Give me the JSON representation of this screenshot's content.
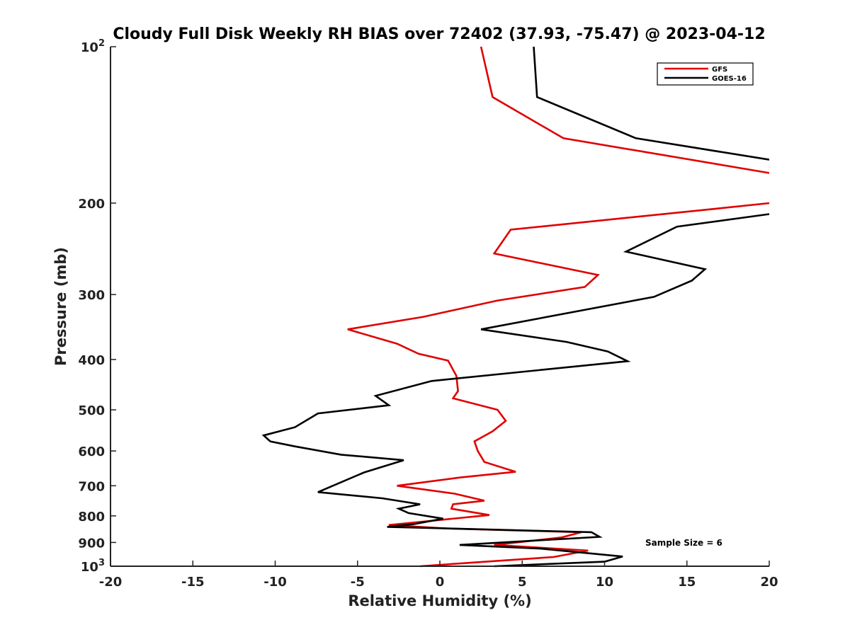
{
  "chart_data": {
    "type": "line",
    "title": "Cloudy Full Disk Weekly RH BIAS over 72402 (37.93, -75.47) @ 2023-04-12",
    "xlabel": "Relative Humidity (%)",
    "ylabel": "Pressure (mb)",
    "xlim": [
      -20,
      20
    ],
    "ylim": [
      100,
      1000
    ],
    "y_scale": "log",
    "y_reversed": true,
    "grid": false,
    "legend_position": "top-right",
    "x_ticks": [
      "-20",
      "-15",
      "-10",
      "-5",
      "0",
      "5",
      "10",
      "15",
      "20"
    ],
    "y_ticks": [
      {
        "value": 100,
        "base": "10",
        "exp": "2"
      },
      {
        "value": 200,
        "label": "200"
      },
      {
        "value": 300,
        "label": "300"
      },
      {
        "value": 400,
        "label": "400"
      },
      {
        "value": 500,
        "label": "500"
      },
      {
        "value": 600,
        "label": "600"
      },
      {
        "value": 700,
        "label": "700"
      },
      {
        "value": 800,
        "label": "800"
      },
      {
        "value": 900,
        "label": "900"
      },
      {
        "value": 1000,
        "base": "10",
        "exp": "3"
      }
    ],
    "series": [
      {
        "name": "GFS",
        "color": "#e00000",
        "points": [
          [
            2.5,
            100
          ],
          [
            3.2,
            125
          ],
          [
            7.5,
            150
          ],
          [
            20,
            175
          ],
          [
            null,
            null
          ],
          [
            20,
            200
          ],
          [
            16.8,
            205
          ],
          [
            4.3,
            225
          ],
          [
            3.3,
            250
          ],
          [
            9.6,
            275
          ],
          [
            8.8,
            290
          ],
          [
            3.5,
            308
          ],
          [
            -1.0,
            331
          ],
          [
            -5.6,
            350
          ],
          [
            -2.6,
            373
          ],
          [
            -1.3,
            390
          ],
          [
            0.5,
            402
          ],
          [
            1.0,
            430
          ],
          [
            1.1,
            460
          ],
          [
            0.8,
            475
          ],
          [
            3.5,
            500
          ],
          [
            4.0,
            525
          ],
          [
            3.2,
            550
          ],
          [
            2.1,
            575
          ],
          [
            2.3,
            600
          ],
          [
            2.7,
            630
          ],
          [
            4.6,
            658
          ],
          [
            1.2,
            675
          ],
          [
            -2.6,
            700
          ],
          [
            0.9,
            725
          ],
          [
            2.7,
            748
          ],
          [
            0.8,
            760
          ],
          [
            0.7,
            775
          ],
          [
            3.0,
            797
          ],
          [
            -3.1,
            833
          ],
          [
            0.4,
            846
          ],
          [
            8.6,
            860
          ],
          [
            7.4,
            880
          ],
          [
            3.3,
            910
          ],
          [
            9.0,
            933
          ],
          [
            6.9,
            960
          ],
          [
            -1.2,
            1000
          ]
        ]
      },
      {
        "name": "GOES-16",
        "color": "#000000",
        "points": [
          [
            5.7,
            100
          ],
          [
            5.9,
            125
          ],
          [
            11.9,
            150
          ],
          [
            20,
            165
          ],
          [
            null,
            null
          ],
          [
            20,
            210
          ],
          [
            14.4,
            222
          ],
          [
            11.3,
            248
          ],
          [
            16.1,
            268
          ],
          [
            15.3,
            282
          ],
          [
            13.0,
            303
          ],
          [
            2.5,
            350
          ],
          [
            7.7,
            370
          ],
          [
            10.2,
            386
          ],
          [
            11.4,
            403
          ],
          [
            -0.5,
            440
          ],
          [
            -3.9,
            470
          ],
          [
            -3.1,
            490
          ],
          [
            -7.4,
            508
          ],
          [
            -8.8,
            540
          ],
          [
            -10.7,
            560
          ],
          [
            -10.3,
            575
          ],
          [
            -8.8,
            588
          ],
          [
            -6.0,
            610
          ],
          [
            -2.2,
            625
          ],
          [
            -4.6,
            660
          ],
          [
            -6.5,
            700
          ],
          [
            -7.4,
            720
          ],
          [
            -3.5,
            740
          ],
          [
            -1.2,
            760
          ],
          [
            -2.5,
            775
          ],
          [
            -2.1,
            785
          ],
          [
            -1.9,
            790
          ],
          [
            0.2,
            810
          ],
          [
            -1.6,
            830
          ],
          [
            -3.2,
            840
          ],
          [
            9.2,
            860
          ],
          [
            9.7,
            878
          ],
          [
            1.2,
            910
          ],
          [
            6.1,
            925
          ],
          [
            11.1,
            958
          ],
          [
            10.0,
            980
          ],
          [
            3.3,
            1000
          ]
        ]
      }
    ],
    "annotation": "Sample Size = 6"
  }
}
